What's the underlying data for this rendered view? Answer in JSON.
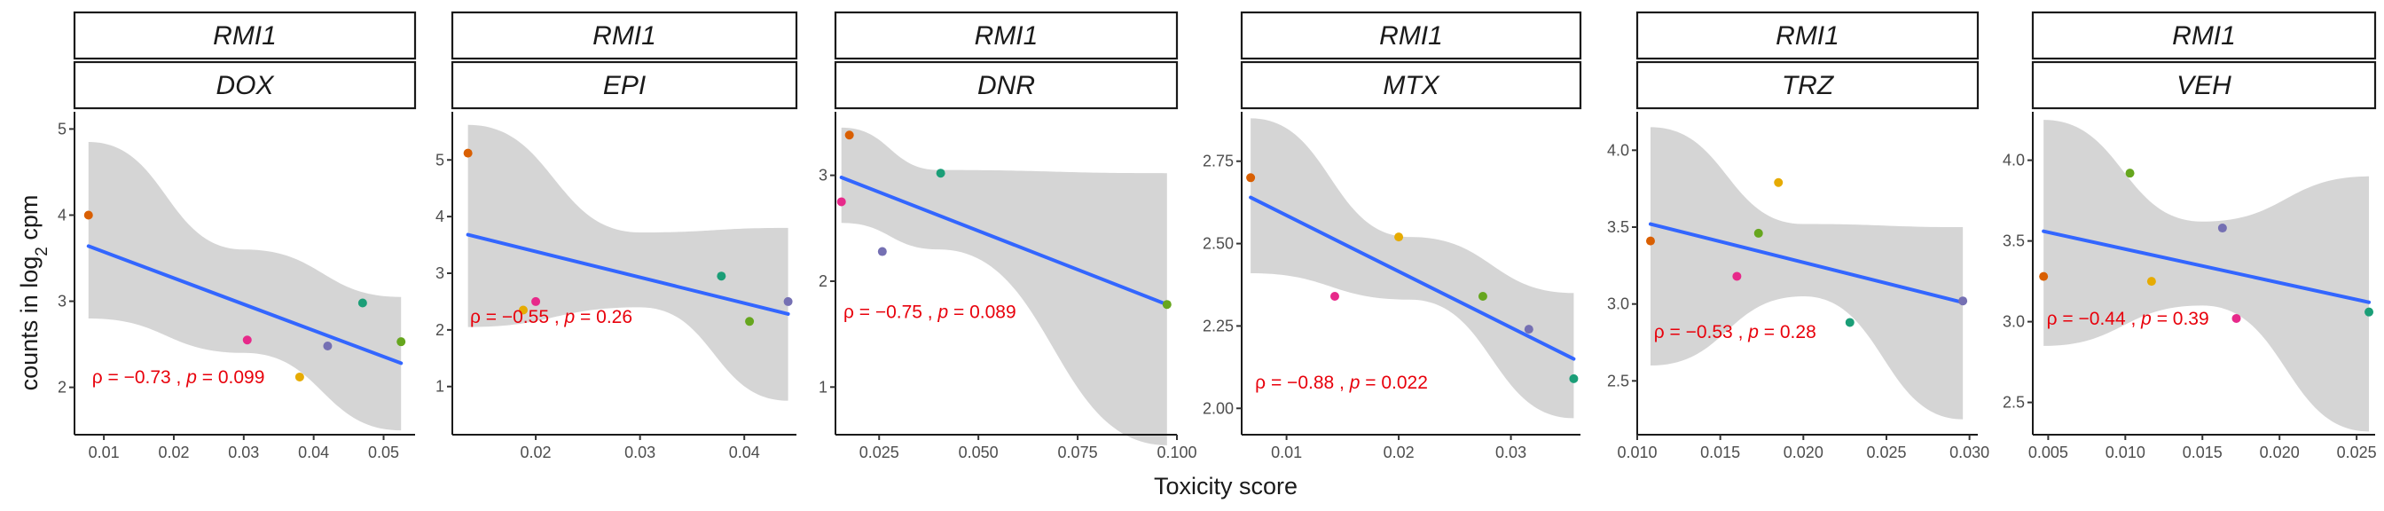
{
  "chart_data": {
    "type": "scatter",
    "facet_strip_label": "RMI1",
    "xlabel": "Toxicity score",
    "ylabel": "counts in log",
    "ylabel_subscript": "2",
    "ylabel_suffix": " cpm",
    "point_colors": [
      "#d95f02",
      "#e7298a",
      "#7570b3",
      "#66a61e",
      "#e6ab02",
      "#1b9e77"
    ],
    "line_color": "#3366ff",
    "band_color": "#d3d3d3",
    "annotation_color": "#e8000b",
    "panels": [
      {
        "drug": "DOX",
        "annotation": {
          "rho_text": "ρ = −0.73 , ",
          "p_label": "p",
          "p_text": " = 0.099"
        },
        "xlim": [
          0.0058,
          0.0545
        ],
        "ylim": [
          1.45,
          5.2
        ],
        "x_ticks": [
          0.01,
          0.02,
          0.03,
          0.04,
          0.05
        ],
        "x_tick_labels": [
          "0.01",
          "0.02",
          "0.03",
          "0.04",
          "0.05"
        ],
        "y_ticks": [
          2,
          3,
          4,
          5
        ],
        "y_tick_labels": [
          "2",
          "3",
          "4",
          "5"
        ],
        "points": [
          {
            "x": 0.0078,
            "y": 4.0,
            "c": 0
          },
          {
            "x": 0.0305,
            "y": 2.55,
            "c": 1
          },
          {
            "x": 0.042,
            "y": 2.48,
            "c": 2
          },
          {
            "x": 0.038,
            "y": 2.12,
            "c": 4
          },
          {
            "x": 0.047,
            "y": 2.98,
            "c": 5
          },
          {
            "x": 0.0525,
            "y": 2.53,
            "c": 3
          }
        ],
        "fit": {
          "x": [
            0.0078,
            0.0525
          ],
          "y": [
            3.64,
            2.28
          ]
        },
        "band": {
          "x": [
            0.0078,
            0.03,
            0.0525
          ],
          "lower": [
            2.8,
            2.4,
            1.5
          ],
          "upper": [
            4.85,
            3.6,
            3.05
          ]
        },
        "annot_pos": {
          "x": 0.0083,
          "y": 2.05
        }
      },
      {
        "drug": "EPI",
        "annotation": {
          "rho_text": "ρ = −0.55 , ",
          "p_label": "p",
          "p_text": " = 0.26"
        },
        "xlim": [
          0.012,
          0.045
        ],
        "ylim": [
          0.15,
          5.85
        ],
        "x_ticks": [
          0.02,
          0.03,
          0.04
        ],
        "x_tick_labels": [
          "0.02",
          "0.03",
          "0.04"
        ],
        "y_ticks": [
          1,
          2,
          3,
          4,
          5
        ],
        "y_tick_labels": [
          "1",
          "2",
          "3",
          "4",
          "5"
        ],
        "points": [
          {
            "x": 0.0135,
            "y": 5.12,
            "c": 0
          },
          {
            "x": 0.0188,
            "y": 2.35,
            "c": 4
          },
          {
            "x": 0.02,
            "y": 2.5,
            "c": 1
          },
          {
            "x": 0.0378,
            "y": 2.95,
            "c": 5
          },
          {
            "x": 0.0405,
            "y": 2.15,
            "c": 3
          },
          {
            "x": 0.0442,
            "y": 2.5,
            "c": 2
          }
        ],
        "fit": {
          "x": [
            0.0135,
            0.0442
          ],
          "y": [
            3.68,
            2.28
          ]
        },
        "band": {
          "x": [
            0.0135,
            0.03,
            0.0442
          ],
          "lower": [
            2.05,
            2.4,
            0.75
          ],
          "upper": [
            5.62,
            3.72,
            3.8
          ]
        },
        "annot_pos": {
          "x": 0.0137,
          "y": 2.12
        }
      },
      {
        "drug": "DNR",
        "annotation": {
          "rho_text": "ρ = −0.75 , ",
          "p_label": "p",
          "p_text": " = 0.089"
        },
        "xlim": [
          0.014,
          0.1
        ],
        "ylim": [
          0.55,
          3.6
        ],
        "x_ticks": [
          0.025,
          0.05,
          0.075,
          0.1
        ],
        "x_tick_labels": [
          "0.025",
          "0.050",
          "0.075",
          "0.100"
        ],
        "y_ticks": [
          1,
          2,
          3
        ],
        "y_tick_labels": [
          "1",
          "2",
          "3"
        ],
        "points": [
          {
            "x": 0.0175,
            "y": 3.38,
            "c": 0
          },
          {
            "x": 0.0155,
            "y": 2.75,
            "c": 1
          },
          {
            "x": 0.0258,
            "y": 2.28,
            "c": 2
          },
          {
            "x": 0.0405,
            "y": 3.02,
            "c": 5
          },
          {
            "x": 0.0975,
            "y": 1.78,
            "c": 3
          }
        ],
        "fit": {
          "x": [
            0.0155,
            0.0975
          ],
          "y": [
            2.98,
            1.78
          ]
        },
        "band": {
          "x": [
            0.0155,
            0.04,
            0.0975
          ],
          "lower": [
            2.55,
            2.3,
            0.45
          ],
          "upper": [
            3.45,
            3.05,
            3.02
          ]
        },
        "annot_pos": {
          "x": 0.016,
          "y": 1.65
        }
      },
      {
        "drug": "MTX",
        "annotation": {
          "rho_text": "ρ = −0.88 , ",
          "p_label": "p",
          "p_text": " = 0.022"
        },
        "xlim": [
          0.006,
          0.0362
        ],
        "ylim": [
          1.92,
          2.9
        ],
        "x_ticks": [
          0.01,
          0.02,
          0.03
        ],
        "x_tick_labels": [
          "0.01",
          "0.02",
          "0.03"
        ],
        "y_ticks": [
          2.0,
          2.25,
          2.5,
          2.75
        ],
        "y_tick_labels": [
          "2.00",
          "2.25",
          "2.50",
          "2.75"
        ],
        "points": [
          {
            "x": 0.0068,
            "y": 2.7,
            "c": 0
          },
          {
            "x": 0.0143,
            "y": 2.34,
            "c": 1
          },
          {
            "x": 0.02,
            "y": 2.52,
            "c": 4
          },
          {
            "x": 0.0275,
            "y": 2.34,
            "c": 3
          },
          {
            "x": 0.0316,
            "y": 2.24,
            "c": 2
          },
          {
            "x": 0.0356,
            "y": 2.09,
            "c": 5
          }
        ],
        "fit": {
          "x": [
            0.0068,
            0.0356
          ],
          "y": [
            2.64,
            2.15
          ]
        },
        "band": {
          "x": [
            0.0068,
            0.021,
            0.0356
          ],
          "lower": [
            2.41,
            2.33,
            1.97
          ],
          "upper": [
            2.88,
            2.52,
            2.35
          ]
        },
        "annot_pos": {
          "x": 0.0072,
          "y": 2.06
        }
      },
      {
        "drug": "TRZ",
        "annotation": {
          "rho_text": "ρ = −0.53 , ",
          "p_label": "p",
          "p_text": " = 0.28"
        },
        "xlim": [
          0.01,
          0.0305
        ],
        "ylim": [
          2.15,
          4.25
        ],
        "x_ticks": [
          0.01,
          0.015,
          0.02,
          0.025,
          0.03
        ],
        "x_tick_labels": [
          "0.010",
          "0.015",
          "0.020",
          "0.025",
          "0.030"
        ],
        "y_ticks": [
          2.5,
          3.0,
          3.5,
          4.0
        ],
        "y_tick_labels": [
          "2.5",
          "3.0",
          "3.5",
          "4.0"
        ],
        "points": [
          {
            "x": 0.0108,
            "y": 3.41,
            "c": 0
          },
          {
            "x": 0.016,
            "y": 3.18,
            "c": 1
          },
          {
            "x": 0.0173,
            "y": 3.46,
            "c": 3
          },
          {
            "x": 0.0185,
            "y": 3.79,
            "c": 4
          },
          {
            "x": 0.0228,
            "y": 2.88,
            "c": 5
          },
          {
            "x": 0.0296,
            "y": 3.02,
            "c": 2
          }
        ],
        "fit": {
          "x": [
            0.0108,
            0.0296
          ],
          "y": [
            3.52,
            3.01
          ]
        },
        "band": {
          "x": [
            0.0108,
            0.02,
            0.0296
          ],
          "lower": [
            2.6,
            3.05,
            2.25
          ],
          "upper": [
            4.15,
            3.52,
            3.5
          ]
        },
        "annot_pos": {
          "x": 0.011,
          "y": 2.78
        }
      },
      {
        "drug": "VEH",
        "annotation": {
          "rho_text": "ρ = −0.44 , ",
          "p_label": "p",
          "p_text": " = 0.39"
        },
        "xlim": [
          0.004,
          0.0262
        ],
        "ylim": [
          2.3,
          4.3
        ],
        "x_ticks": [
          0.005,
          0.01,
          0.015,
          0.02,
          0.025
        ],
        "x_tick_labels": [
          "0.005",
          "0.010",
          "0.015",
          "0.020",
          "0.025"
        ],
        "y_ticks": [
          2.5,
          3.0,
          3.5,
          4.0
        ],
        "y_tick_labels": [
          "2.5",
          "3.0",
          "3.5",
          "4.0"
        ],
        "points": [
          {
            "x": 0.0047,
            "y": 3.28,
            "c": 0
          },
          {
            "x": 0.0103,
            "y": 3.92,
            "c": 3
          },
          {
            "x": 0.0117,
            "y": 3.25,
            "c": 4
          },
          {
            "x": 0.0163,
            "y": 3.58,
            "c": 2
          },
          {
            "x": 0.0172,
            "y": 3.02,
            "c": 1
          },
          {
            "x": 0.0258,
            "y": 3.06,
            "c": 5
          }
        ],
        "fit": {
          "x": [
            0.0047,
            0.0258
          ],
          "y": [
            3.56,
            3.12
          ]
        },
        "band": {
          "x": [
            0.0047,
            0.015,
            0.0258
          ],
          "lower": [
            2.85,
            3.1,
            2.32
          ],
          "upper": [
            4.25,
            3.62,
            3.9
          ]
        },
        "annot_pos": {
          "x": 0.0049,
          "y": 2.98
        }
      }
    ]
  }
}
